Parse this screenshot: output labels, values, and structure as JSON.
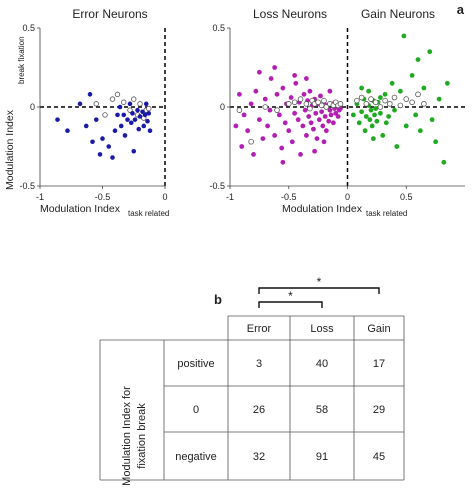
{
  "panel_a_label": "a",
  "panel_b_label": "b",
  "chart_data": [
    {
      "type": "scatter",
      "title": "Error Neurons",
      "xlabel": "Modulation Index",
      "xlabel_sub": "task related",
      "ylabel": "Modulation Index",
      "ylabel_sub": "break fixation",
      "xlim": [
        -1,
        0
      ],
      "ylim": [
        -0.5,
        0.5
      ],
      "xticks": [
        -1,
        -0.5,
        0
      ],
      "yticks": [
        -0.5,
        0,
        0.5
      ],
      "ytick_labels": [
        "-0.5",
        "0",
        "0.5"
      ],
      "xtick_labels": [
        "-1",
        "-0.5",
        "0"
      ],
      "guides": {
        "y": 0,
        "x": 0
      },
      "colors": {
        "filled": "#1a1aa8",
        "open_edge": "#555555"
      },
      "points_filled": [
        [
          -0.86,
          -0.08
        ],
        [
          -0.78,
          -0.15
        ],
        [
          -0.68,
          0.02
        ],
        [
          -0.63,
          -0.12
        ],
        [
          -0.6,
          0.08
        ],
        [
          -0.58,
          -0.22
        ],
        [
          -0.55,
          -0.08
        ],
        [
          -0.52,
          -0.3
        ],
        [
          -0.5,
          -0.2
        ],
        [
          -0.45,
          -0.25
        ],
        [
          -0.42,
          -0.32
        ],
        [
          -0.4,
          -0.15
        ],
        [
          -0.38,
          -0.05
        ],
        [
          -0.36,
          0.0
        ],
        [
          -0.35,
          -0.12
        ],
        [
          -0.33,
          -0.05
        ],
        [
          -0.32,
          -0.18
        ],
        [
          -0.3,
          -0.08
        ],
        [
          -0.28,
          0.02
        ],
        [
          -0.27,
          -0.1
        ],
        [
          -0.26,
          -0.04
        ],
        [
          -0.25,
          -0.28
        ],
        [
          -0.24,
          -0.08
        ],
        [
          -0.22,
          -0.02
        ],
        [
          -0.21,
          -0.14
        ],
        [
          -0.2,
          -0.06
        ],
        [
          -0.18,
          -0.03
        ],
        [
          -0.17,
          -0.12
        ],
        [
          -0.16,
          -0.05
        ],
        [
          -0.15,
          0.02
        ],
        [
          -0.14,
          -0.09
        ],
        [
          -0.13,
          -0.04
        ],
        [
          -0.12,
          -0.15
        ]
      ],
      "points_open": [
        [
          -0.55,
          0.02
        ],
        [
          -0.48,
          -0.05
        ],
        [
          -0.42,
          0.05
        ],
        [
          -0.38,
          0.08
        ],
        [
          -0.33,
          0.03
        ],
        [
          -0.28,
          -0.02
        ],
        [
          -0.25,
          0.05
        ],
        [
          -0.22,
          -0.05
        ],
        [
          -0.2,
          0.02
        ],
        [
          -0.17,
          -0.07
        ],
        [
          -0.15,
          -0.02
        ],
        [
          -0.13,
          -0.01
        ]
      ]
    },
    {
      "type": "scatter",
      "titles": [
        "Loss Neurons",
        "Gain Neurons"
      ],
      "xlabel": "Modulation Index",
      "xlabel_sub": "task related",
      "xlim": [
        -1,
        1
      ],
      "ylim": [
        -0.5,
        0.5
      ],
      "xticks": [
        -1,
        -0.5,
        0,
        0.5
      ],
      "xtick_labels": [
        "-1",
        "-0.5",
        "0",
        "0.5"
      ],
      "yticks": [
        -0.5,
        0,
        0.5
      ],
      "ytick_labels": [
        "-0.5",
        "0",
        "0.5"
      ],
      "guides": {
        "y": 0,
        "x": 0
      },
      "series": [
        {
          "color": "#b21fb2",
          "points": [
            [
              -0.95,
              -0.12
            ],
            [
              -0.92,
              0.08
            ],
            [
              -0.9,
              -0.25
            ],
            [
              -0.88,
              -0.05
            ],
            [
              -0.85,
              -0.15
            ],
            [
              -0.82,
              0.02
            ],
            [
              -0.8,
              -0.3
            ],
            [
              -0.78,
              0.1
            ],
            [
              -0.75,
              -0.08
            ],
            [
              -0.72,
              -0.2
            ],
            [
              -0.7,
              0.05
            ],
            [
              -0.68,
              -0.12
            ],
            [
              -0.66,
              -0.02
            ],
            [
              -0.65,
              0.18
            ],
            [
              -0.62,
              -0.18
            ],
            [
              -0.6,
              0.08
            ],
            [
              -0.58,
              -0.05
            ],
            [
              -0.56,
              -0.26
            ],
            [
              -0.55,
              0.12
            ],
            [
              -0.53,
              -0.1
            ],
            [
              -0.52,
              0.02
            ],
            [
              -0.5,
              -0.15
            ],
            [
              -0.48,
              0.06
            ],
            [
              -0.47,
              -0.22
            ],
            [
              -0.45,
              -0.04
            ],
            [
              -0.44,
              0.15
            ],
            [
              -0.42,
              -0.08
            ],
            [
              -0.41,
              0.03
            ],
            [
              -0.4,
              -0.3
            ],
            [
              -0.38,
              -0.12
            ],
            [
              -0.37,
              0.08
            ],
            [
              -0.36,
              -0.02
            ],
            [
              -0.35,
              -0.18
            ],
            [
              -0.34,
              0.04
            ],
            [
              -0.33,
              -0.06
            ],
            [
              -0.32,
              0.1
            ],
            [
              -0.31,
              -0.1
            ],
            [
              -0.3,
              0.01
            ],
            [
              -0.29,
              -0.14
            ],
            [
              -0.28,
              0.05
            ],
            [
              -0.27,
              -0.04
            ],
            [
              -0.26,
              -0.2
            ],
            [
              -0.25,
              0.02
            ],
            [
              -0.24,
              -0.08
            ],
            [
              -0.23,
              0.07
            ],
            [
              -0.22,
              -0.03
            ],
            [
              -0.21,
              -0.12
            ],
            [
              -0.2,
              0.03
            ],
            [
              -0.19,
              -0.06
            ],
            [
              -0.18,
              -0.15
            ],
            [
              -0.17,
              0.01
            ],
            [
              -0.16,
              -0.09
            ],
            [
              -0.15,
              -0.02
            ],
            [
              -0.14,
              -0.05
            ],
            [
              -0.13,
              0.02
            ],
            [
              -0.12,
              -0.1
            ],
            [
              -0.11,
              -0.01
            ],
            [
              -0.1,
              -0.04
            ],
            [
              -0.09,
              0.0
            ],
            [
              -0.08,
              -0.06
            ],
            [
              -0.07,
              -0.02
            ],
            [
              -0.06,
              -0.01
            ],
            [
              -0.75,
              0.22
            ],
            [
              -0.62,
              0.25
            ],
            [
              -0.55,
              -0.35
            ],
            [
              -0.45,
              0.2
            ],
            [
              -0.35,
              0.18
            ],
            [
              -0.28,
              -0.28
            ],
            [
              -0.2,
              -0.22
            ],
            [
              -0.15,
              0.1
            ]
          ]
        },
        {
          "color": "#1faa1f",
          "points": [
            [
              0.05,
              -0.05
            ],
            [
              0.08,
              0.02
            ],
            [
              0.1,
              -0.1
            ],
            [
              0.12,
              -0.03
            ],
            [
              0.14,
              0.05
            ],
            [
              0.15,
              -0.15
            ],
            [
              0.16,
              -0.06
            ],
            [
              0.18,
              0.01
            ],
            [
              0.19,
              -0.08
            ],
            [
              0.2,
              -0.02
            ],
            [
              0.21,
              -0.12
            ],
            [
              0.22,
              0.04
            ],
            [
              0.23,
              -0.05
            ],
            [
              0.24,
              -0.01
            ],
            [
              0.25,
              -0.09
            ],
            [
              0.26,
              0.03
            ],
            [
              0.28,
              -0.04
            ],
            [
              0.3,
              -0.18
            ],
            [
              0.32,
              0.08
            ],
            [
              0.35,
              -0.06
            ],
            [
              0.38,
              0.15
            ],
            [
              0.4,
              -0.02
            ],
            [
              0.42,
              -0.25
            ],
            [
              0.45,
              0.1
            ],
            [
              0.48,
              0.45
            ],
            [
              0.5,
              -0.12
            ],
            [
              0.55,
              0.2
            ],
            [
              0.58,
              -0.05
            ],
            [
              0.6,
              0.3
            ],
            [
              0.62,
              -0.15
            ],
            [
              0.65,
              0.12
            ],
            [
              0.7,
              0.35
            ],
            [
              0.72,
              -0.08
            ],
            [
              0.75,
              -0.22
            ],
            [
              0.78,
              0.05
            ],
            [
              0.82,
              -0.35
            ],
            [
              0.85,
              0.15
            ],
            [
              0.18,
              0.1
            ],
            [
              0.12,
              0.12
            ],
            [
              0.28,
              0.06
            ],
            [
              0.33,
              -0.1
            ],
            [
              0.22,
              -0.2
            ]
          ]
        },
        {
          "color": "#ffffff",
          "edge": "#555555",
          "points": [
            [
              -0.92,
              -0.02
            ],
            [
              -0.82,
              -0.22
            ],
            [
              -0.7,
              0.0
            ],
            [
              -0.6,
              -0.02
            ],
            [
              -0.5,
              0.02
            ],
            [
              -0.45,
              0.03
            ],
            [
              -0.4,
              0.05
            ],
            [
              -0.35,
              0.02
            ],
            [
              -0.32,
              -0.01
            ],
            [
              -0.3,
              0.04
            ],
            [
              -0.28,
              0.02
            ],
            [
              -0.25,
              0.03
            ],
            [
              -0.22,
              0.01
            ],
            [
              -0.2,
              0.04
            ],
            [
              -0.18,
              0.0
            ],
            [
              -0.15,
              0.02
            ],
            [
              -0.12,
              0.01
            ],
            [
              -0.1,
              0.03
            ],
            [
              -0.08,
              0.01
            ],
            [
              -0.06,
              0.02
            ],
            [
              0.08,
              0.04
            ],
            [
              0.12,
              0.06
            ],
            [
              0.16,
              0.02
            ],
            [
              0.2,
              0.05
            ],
            [
              0.24,
              0.03
            ],
            [
              0.28,
              0.0
            ],
            [
              0.32,
              0.04
            ],
            [
              0.36,
              0.02
            ],
            [
              0.4,
              0.06
            ],
            [
              0.45,
              0.01
            ],
            [
              0.5,
              0.05
            ],
            [
              0.55,
              0.03
            ],
            [
              0.6,
              0.08
            ],
            [
              0.65,
              0.02
            ]
          ]
        }
      ]
    },
    {
      "type": "table",
      "columns": [
        "Error",
        "Loss",
        "Gain"
      ],
      "row_axis_label": "Modulation Index for fixation break",
      "rows": [
        {
          "label": "positive",
          "values": [
            "3",
            "40",
            "17"
          ]
        },
        {
          "label": "0",
          "values": [
            "26",
            "58",
            "29"
          ]
        },
        {
          "label": "negative",
          "values": [
            "32",
            "91",
            "45"
          ]
        }
      ],
      "significance_markers": [
        {
          "from": "Error",
          "to": "Loss",
          "symbol": "*"
        },
        {
          "from": "Error",
          "to": "Gain",
          "symbol": "*"
        }
      ]
    }
  ]
}
